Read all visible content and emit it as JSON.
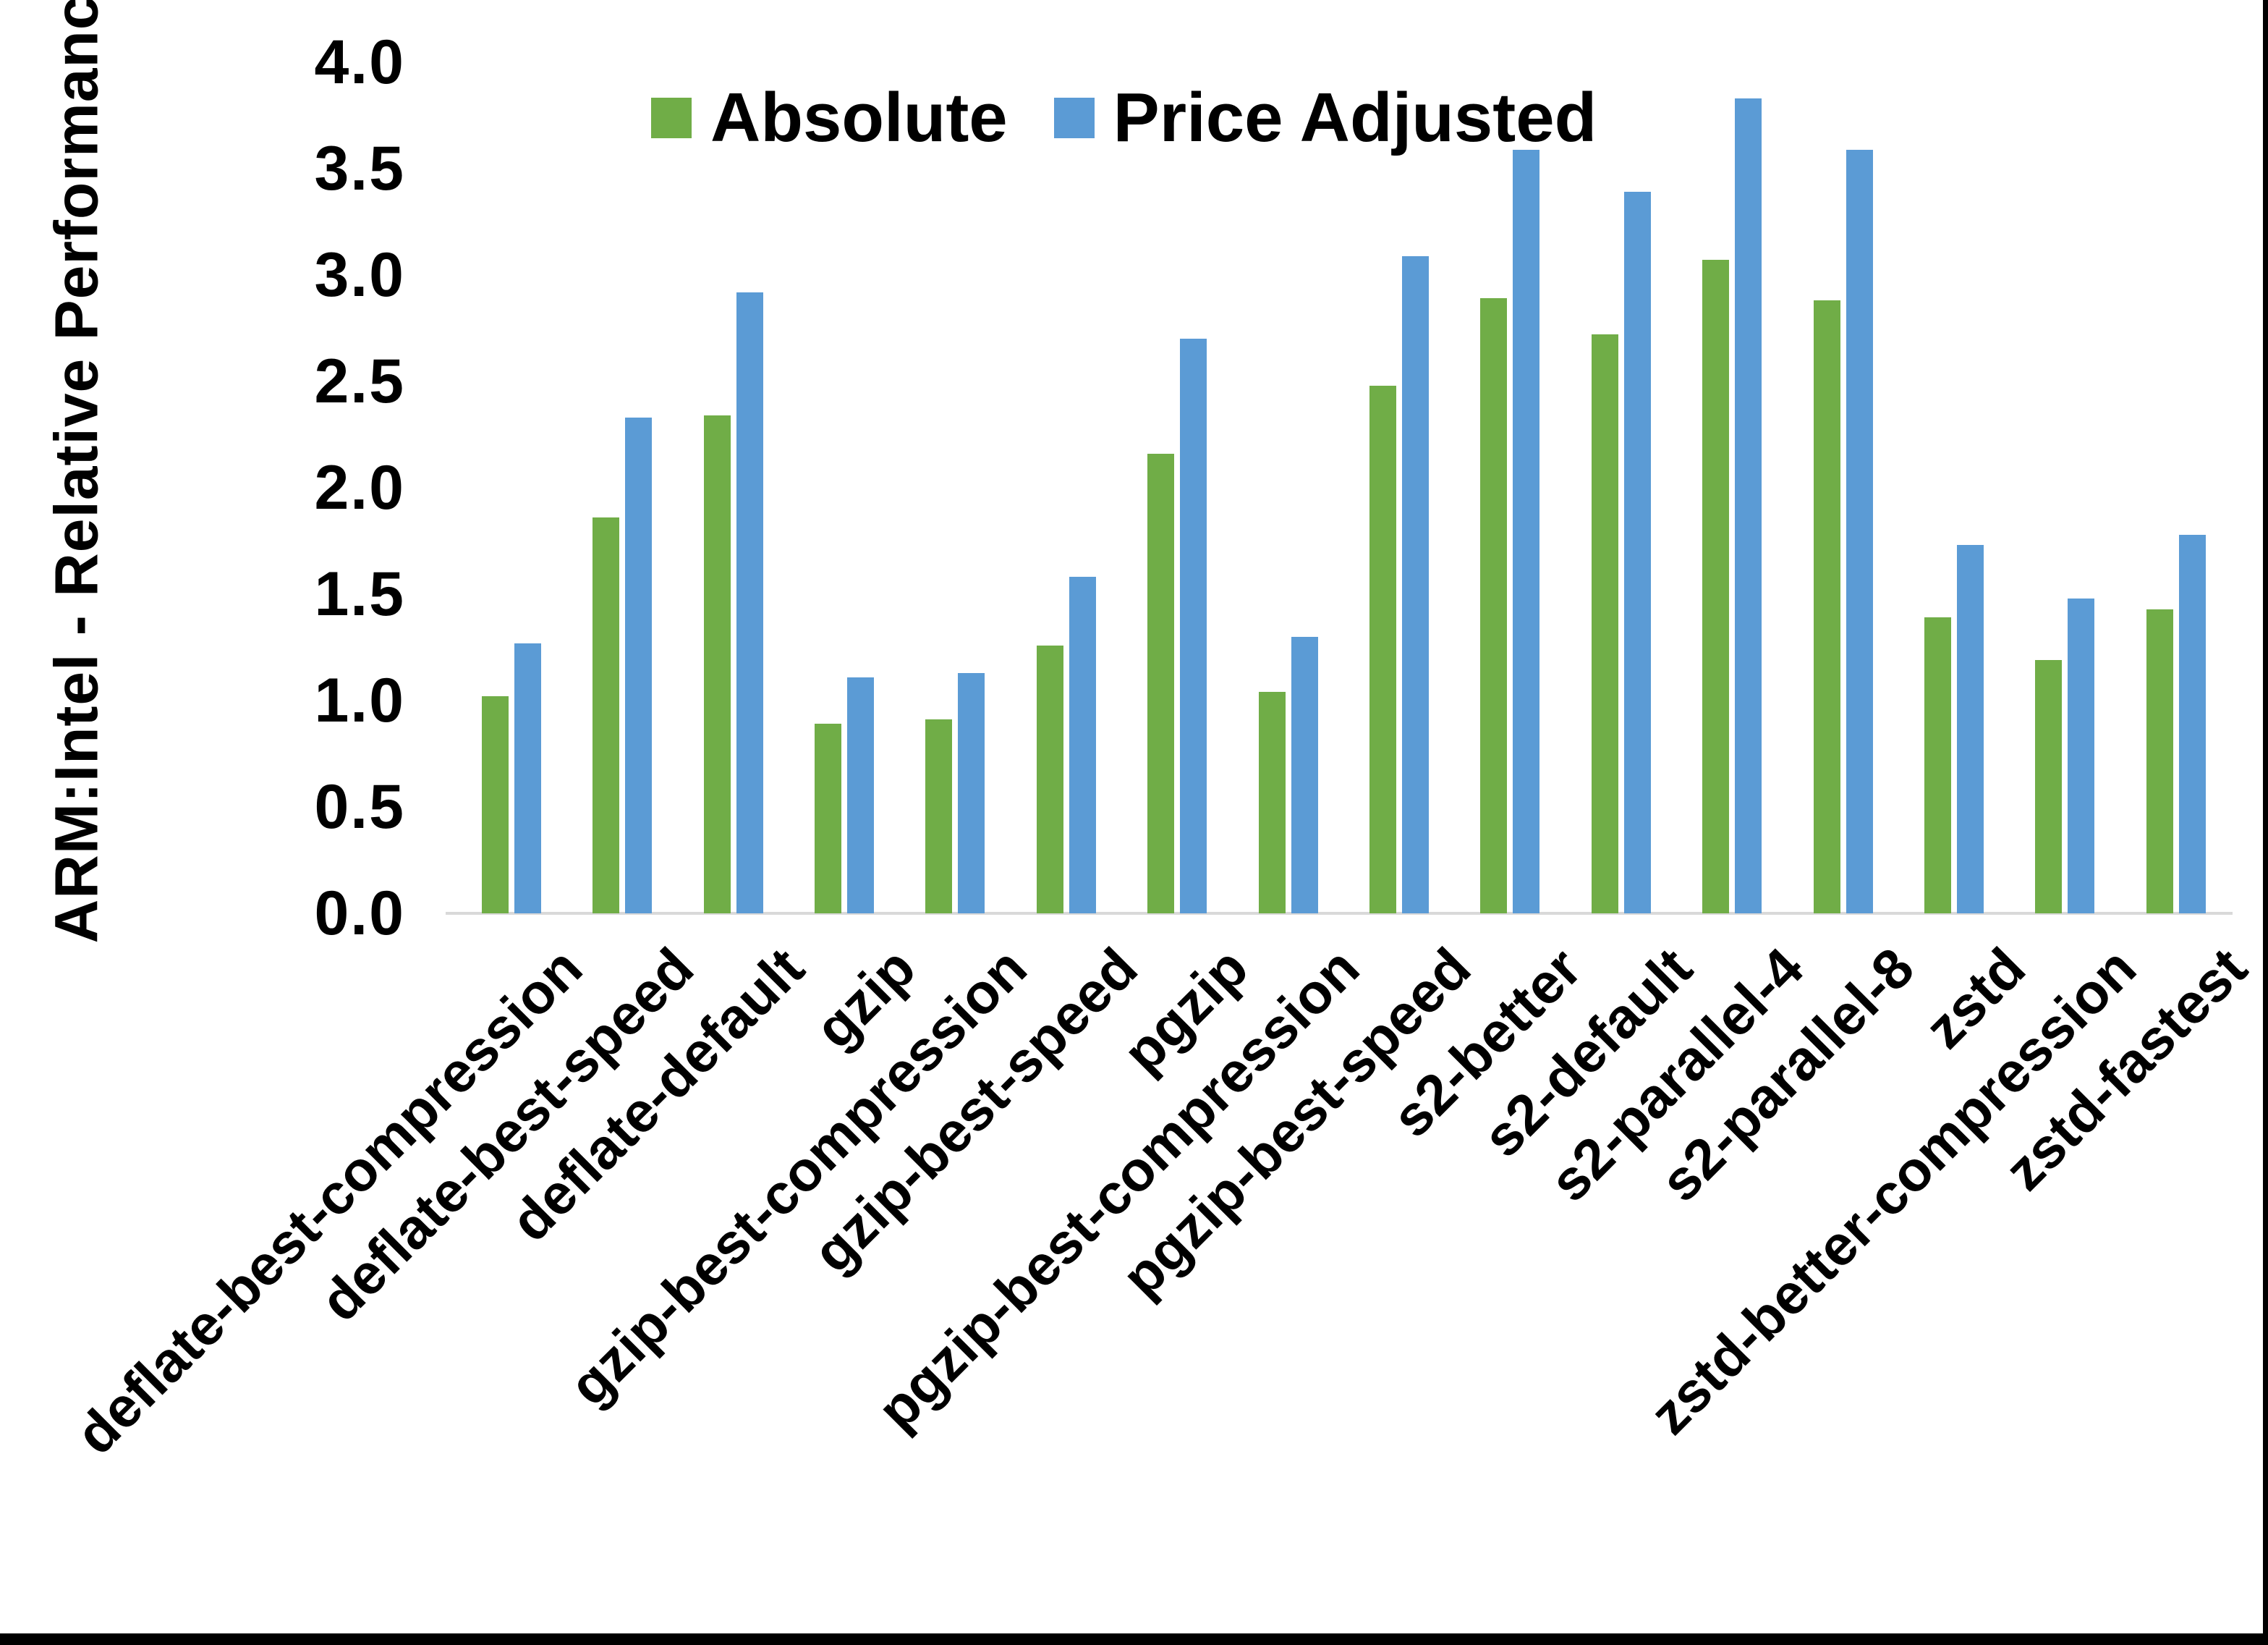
{
  "chart_data": {
    "type": "bar",
    "title": "",
    "ylabel": "ARM:Intel - Relative Performance",
    "xlabel": "",
    "ylim": [
      0.0,
      4.0
    ],
    "ytick_step": 0.5,
    "ytick_labels": [
      "4.0",
      "3.5",
      "3.0",
      "2.5",
      "2.0",
      "1.5",
      "1.0",
      "0.5",
      "0.0"
    ],
    "grid": false,
    "legend_position": "top-center",
    "categories": [
      "deflate-best-compression",
      "deflate-best-speed",
      "deflate-default",
      "gzip",
      "gzip-best-compression",
      "gzip-best-speed",
      "pgzip",
      "pgzip-best-compression",
      "pgzip-best-speed",
      "s2-better",
      "s2-default",
      "s2-parallel-4",
      "s2-parallel-8",
      "zstd",
      "zstd-better-compression",
      "zstd-fastest"
    ],
    "series": [
      {
        "name": "Absolute",
        "color": "#70AD47",
        "values": [
          1.02,
          1.86,
          2.34,
          0.89,
          0.91,
          1.26,
          2.16,
          1.04,
          2.48,
          2.89,
          2.72,
          3.07,
          2.88,
          1.39,
          1.19,
          1.43
        ]
      },
      {
        "name": "Price Adjusted",
        "color": "#5B9BD5",
        "values": [
          1.27,
          2.33,
          2.92,
          1.11,
          1.13,
          1.58,
          2.7,
          1.3,
          3.09,
          3.59,
          3.39,
          3.83,
          3.59,
          1.73,
          1.48,
          1.78
        ]
      }
    ],
    "colors": {
      "axis_line": "#D9D9D9",
      "text": "#000000",
      "background": "#FFFFFF",
      "frame_border": "#000000"
    }
  }
}
